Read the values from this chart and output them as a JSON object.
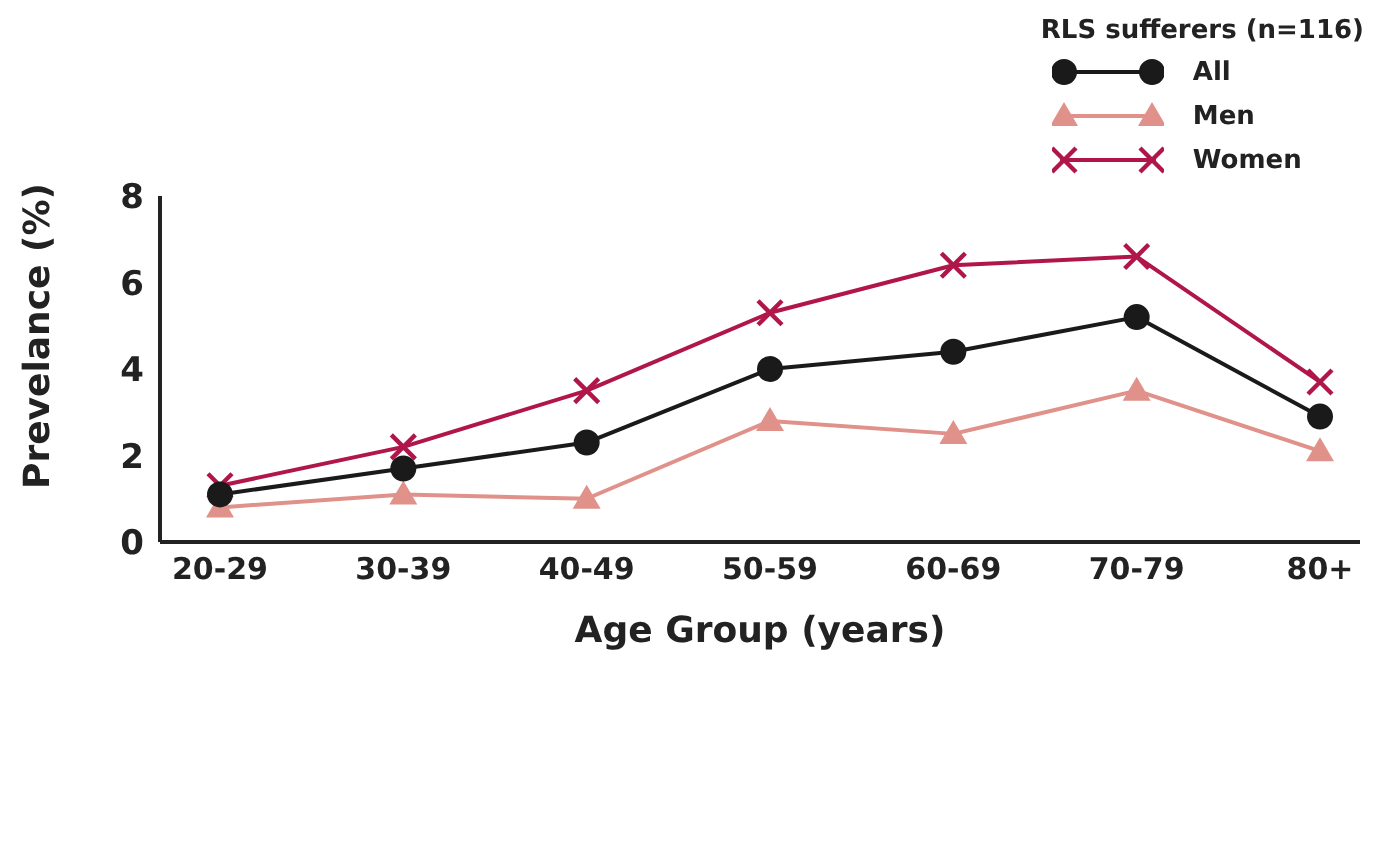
{
  "chart_data": {
    "type": "line",
    "xlabel": "Age Group (years)",
    "ylabel": "Prevelance (%)",
    "legend_title": "RLS sufferers (n=116)",
    "legend": "top right",
    "grid": false,
    "categories": [
      "20-29",
      "30-39",
      "40-49",
      "50-59",
      "60-69",
      "70-79",
      "80+"
    ],
    "ylim": [
      0,
      8
    ],
    "yticks": [
      0,
      2,
      4,
      6,
      8
    ],
    "series": [
      {
        "name": "All",
        "color": "#1a1a1a",
        "marker": "circle",
        "values": [
          1.1,
          1.7,
          2.3,
          4.0,
          4.4,
          5.2,
          2.9
        ]
      },
      {
        "name": "Men",
        "color": "#e0918a",
        "marker": "triangle",
        "values": [
          0.8,
          1.1,
          1.0,
          2.8,
          2.5,
          3.5,
          2.1
        ]
      },
      {
        "name": "Women",
        "color": "#b0164a",
        "marker": "cross",
        "values": [
          1.3,
          2.2,
          3.5,
          5.3,
          6.4,
          6.6,
          3.7
        ]
      }
    ]
  }
}
